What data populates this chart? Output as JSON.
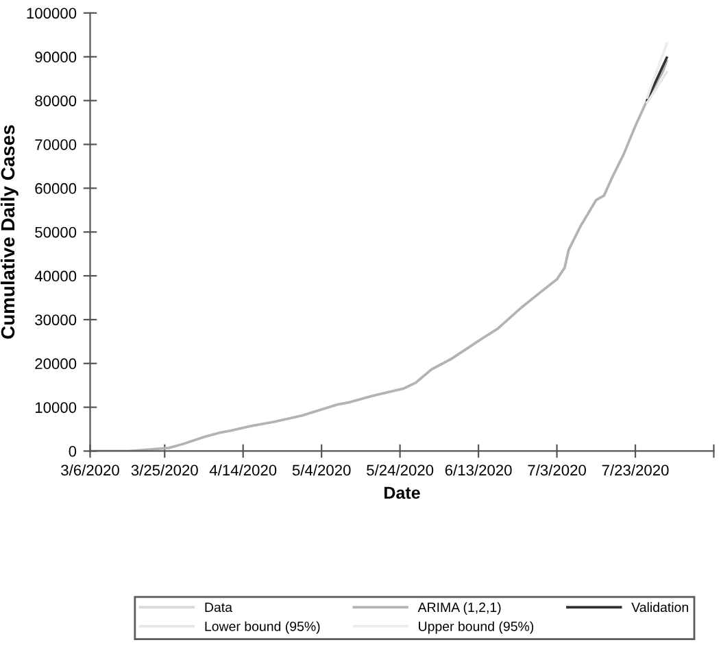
{
  "chart_data": {
    "type": "line",
    "xlabel": "Date",
    "ylabel": "Cumulative Daily Cases",
    "xlim": [
      "2020-03-06",
      "2020-08-12"
    ],
    "xticks": [
      {
        "value": "2020-03-06",
        "label": "3/6/2020"
      },
      {
        "value": "2020-03-25",
        "label": "3/25/2020"
      },
      {
        "value": "2020-04-14",
        "label": "4/14/2020"
      },
      {
        "value": "2020-05-04",
        "label": "5/4/2020"
      },
      {
        "value": "2020-05-24",
        "label": "5/24/2020"
      },
      {
        "value": "2020-06-13",
        "label": "6/13/2020"
      },
      {
        "value": "2020-07-03",
        "label": "7/3/2020"
      },
      {
        "value": "2020-07-23",
        "label": "7/23/2020"
      },
      {
        "value": "2020-08-12",
        "label": null
      }
    ],
    "ylim": [
      0,
      100000
    ],
    "yticks": [
      0,
      10000,
      20000,
      30000,
      40000,
      50000,
      60000,
      70000,
      80000,
      90000,
      100000
    ],
    "grid": false,
    "legend": "bottom",
    "marker": "none",
    "series": [
      {
        "name": "Data",
        "color": "#d9d9d9",
        "x": [
          "2020-03-06",
          "2020-03-16",
          "2020-03-26",
          "2020-03-30",
          "2020-04-04",
          "2020-04-08",
          "2020-04-11",
          "2020-04-16",
          "2020-04-22",
          "2020-04-29",
          "2020-05-08",
          "2020-05-11",
          "2020-05-17",
          "2020-05-25",
          "2020-05-28",
          "2020-06-01",
          "2020-06-06",
          "2020-06-14",
          "2020-06-18",
          "2020-06-24",
          "2020-06-29",
          "2020-07-03",
          "2020-07-05",
          "2020-07-06",
          "2020-07-09",
          "2020-07-11",
          "2020-07-13",
          "2020-07-15",
          "2020-07-17",
          "2020-07-20",
          "2020-07-23",
          "2020-07-26"
        ],
        "values": [
          0,
          0,
          700,
          1700,
          3200,
          4200,
          4700,
          5700,
          6700,
          8100,
          10600,
          11100,
          12600,
          14300,
          15600,
          18600,
          21000,
          25700,
          28000,
          32800,
          36400,
          39200,
          41900,
          45900,
          51300,
          54300,
          57300,
          58300,
          62300,
          67700,
          74200,
          80100
        ]
      },
      {
        "name": "ARIMA (1,2,1)",
        "color": "#b3b3b3",
        "x": [
          "2020-03-06",
          "2020-03-16",
          "2020-03-26",
          "2020-03-30",
          "2020-04-04",
          "2020-04-08",
          "2020-04-11",
          "2020-04-16",
          "2020-04-22",
          "2020-04-29",
          "2020-05-08",
          "2020-05-11",
          "2020-05-17",
          "2020-05-25",
          "2020-05-28",
          "2020-06-01",
          "2020-06-06",
          "2020-06-14",
          "2020-06-18",
          "2020-06-24",
          "2020-06-29",
          "2020-07-03",
          "2020-07-05",
          "2020-07-06",
          "2020-07-09",
          "2020-07-11",
          "2020-07-13",
          "2020-07-15",
          "2020-07-17",
          "2020-07-20",
          "2020-07-23",
          "2020-07-26",
          "2020-07-30",
          "2020-07-31"
        ],
        "values": [
          0,
          0,
          700,
          1700,
          3200,
          4200,
          4700,
          5700,
          6700,
          8100,
          10600,
          11100,
          12600,
          14300,
          15600,
          18600,
          21000,
          25700,
          28000,
          32800,
          36400,
          39200,
          41900,
          45900,
          51300,
          54300,
          57300,
          58300,
          62300,
          67700,
          74200,
          80100,
          86600,
          89000
        ]
      },
      {
        "name": "Validation",
        "color": "#333333",
        "x": [
          "2020-07-26",
          "2020-07-31"
        ],
        "values": [
          80100,
          89800
        ]
      },
      {
        "name": "Lower bound (95%)",
        "color": "#e6e6e6",
        "x": [
          "2020-07-26",
          "2020-07-31"
        ],
        "values": [
          79500,
          86500
        ]
      },
      {
        "name": "Upper bound (95%)",
        "color": "#ececec",
        "x": [
          "2020-07-26",
          "2020-07-31"
        ],
        "values": [
          80700,
          93000
        ]
      }
    ]
  }
}
